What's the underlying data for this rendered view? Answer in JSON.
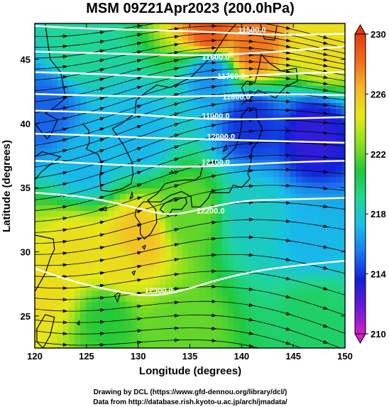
{
  "title": "MSM 09Z21Apr2023 (200.0hPa)",
  "credit": {
    "line1": "Drawing by DCL (https://www.gfd-dennou.org/library/dcl/)",
    "line2": "Data from http://database.rish.kyoto-u.ac.jp/arch/jmadata/"
  },
  "chart_data": {
    "type": "heatmap",
    "title": "MSM 09Z21Apr2023 (200.0hPa)",
    "xlabel": "Longitude (degrees)",
    "ylabel": "Latitude  (degrees)",
    "xlim": [
      120,
      150
    ],
    "ylim": [
      22.5,
      47.8
    ],
    "xticks": [
      120,
      125,
      130,
      135,
      140,
      145,
      150
    ],
    "yticks": [
      25,
      30,
      35,
      40,
      45
    ],
    "xtick_labels": [
      "120",
      "125",
      "130",
      "135",
      "140",
      "145",
      "150"
    ],
    "ytick_labels": [
      "25",
      "30",
      "35",
      "40",
      "45"
    ],
    "colorbar": {
      "min": 210,
      "max": 230,
      "ticks": [
        210,
        214,
        218,
        222,
        226,
        230
      ],
      "tick_labels": [
        "210",
        "214",
        "218",
        "222",
        "226",
        "230"
      ],
      "colors": [
        "#d020c8",
        "#6a18d8",
        "#1020d8",
        "#1a7aee",
        "#18c0e8",
        "#20d690",
        "#20c83a",
        "#8ee020",
        "#e6e818",
        "#f5b828",
        "#f06e1c",
        "#e43a10"
      ]
    },
    "temperature_samples": [
      {
        "lon": 121,
        "lat": 27,
        "value": 225
      },
      {
        "lon": 124,
        "lat": 30,
        "value": 225
      },
      {
        "lon": 130,
        "lat": 31,
        "value": 226
      },
      {
        "lon": 128,
        "lat": 29,
        "value": 225
      },
      {
        "lon": 135,
        "lat": 33,
        "value": 222
      },
      {
        "lon": 141,
        "lat": 33,
        "value": 218
      },
      {
        "lon": 147,
        "lat": 31,
        "value": 217
      },
      {
        "lon": 125,
        "lat": 37,
        "value": 217
      },
      {
        "lon": 121,
        "lat": 41,
        "value": 215
      },
      {
        "lon": 130,
        "lat": 39,
        "value": 217
      },
      {
        "lon": 141,
        "lat": 40,
        "value": 214
      },
      {
        "lon": 147,
        "lat": 39,
        "value": 213
      },
      {
        "lon": 124,
        "lat": 46,
        "value": 219
      },
      {
        "lon": 137,
        "lat": 44,
        "value": 216
      },
      {
        "lon": 141,
        "lat": 46,
        "value": 228
      },
      {
        "lon": 137,
        "lat": 47,
        "value": 229
      },
      {
        "lon": 148,
        "lat": 46,
        "value": 225
      },
      {
        "lon": 134,
        "lat": 24,
        "value": 222
      },
      {
        "lon": 127,
        "lat": 25,
        "value": 221
      },
      {
        "lon": 147,
        "lat": 25,
        "value": 220
      }
    ],
    "height_contours": [
      {
        "label": "11500.0",
        "value": 11500,
        "lat_at_lon": [
          [
            120,
            47.6
          ],
          [
            125,
            47.4
          ],
          [
            130,
            47.3
          ],
          [
            135,
            47.2
          ],
          [
            140,
            47.0
          ],
          [
            145,
            46.9
          ],
          [
            150,
            47.0
          ]
        ],
        "label_lon": 141,
        "label_lat": 47.3
      },
      {
        "label": "11600.0",
        "value": 11600,
        "lat_at_lon": [
          [
            120,
            45.6
          ],
          [
            125,
            45.5
          ],
          [
            130,
            45.4
          ],
          [
            135,
            45.3
          ],
          [
            140,
            45.4
          ],
          [
            145,
            45.7
          ],
          [
            150,
            46.0
          ]
        ],
        "label_lon": 137.5,
        "label_lat": 45.2
      },
      {
        "label": "11700.0",
        "value": 11700,
        "lat_at_lon": [
          [
            120,
            44.0
          ],
          [
            125,
            43.9
          ],
          [
            130,
            43.7
          ],
          [
            135,
            43.5
          ],
          [
            140,
            43.7
          ],
          [
            145,
            43.9
          ],
          [
            150,
            44.0
          ]
        ],
        "label_lon": 139,
        "label_lat": 43.7
      },
      {
        "label": "11800.0",
        "value": 11800,
        "lat_at_lon": [
          [
            120,
            42.3
          ],
          [
            125,
            42.2
          ],
          [
            130,
            42.1
          ],
          [
            135,
            42.1
          ],
          [
            140,
            42.2
          ],
          [
            145,
            42.3
          ],
          [
            150,
            42.2
          ]
        ],
        "label_lon": 139.5,
        "label_lat": 42.1
      },
      {
        "label": "11900.0",
        "value": 11900,
        "lat_at_lon": [
          [
            120,
            41.0
          ],
          [
            125,
            40.9
          ],
          [
            130,
            40.7
          ],
          [
            135,
            40.4
          ],
          [
            140,
            40.3
          ],
          [
            145,
            40.4
          ],
          [
            150,
            40.5
          ]
        ],
        "label_lon": 137.5,
        "label_lat": 40.6
      },
      {
        "label": "12000.0",
        "value": 12000,
        "lat_at_lon": [
          [
            120,
            39.2
          ],
          [
            125,
            39.1
          ],
          [
            130,
            38.9
          ],
          [
            135,
            38.8
          ],
          [
            140,
            38.7
          ],
          [
            145,
            38.6
          ],
          [
            150,
            38.5
          ]
        ],
        "label_lon": 138,
        "label_lat": 39.0
      },
      {
        "label": "12100.0",
        "value": 12100,
        "lat_at_lon": [
          [
            120,
            37.1
          ],
          [
            125,
            36.9
          ],
          [
            130,
            36.7
          ],
          [
            135,
            36.6
          ],
          [
            140,
            36.8
          ],
          [
            145,
            37.0
          ],
          [
            150,
            37.1
          ]
        ],
        "label_lon": 137.5,
        "label_lat": 37.0
      },
      {
        "label": "12200.0",
        "value": 12200,
        "lat_at_lon": [
          [
            120,
            34.6
          ],
          [
            125,
            34.3
          ],
          [
            130,
            33.4
          ],
          [
            133,
            32.8
          ],
          [
            136,
            33.3
          ],
          [
            140,
            34.0
          ],
          [
            145,
            34.1
          ],
          [
            150,
            34.2
          ]
        ],
        "label_lon": 137,
        "label_lat": 33.2
      },
      {
        "label": "12300.0",
        "value": 12300,
        "lat_at_lon": [
          [
            120,
            28.7
          ],
          [
            124,
            27.6
          ],
          [
            128,
            26.9
          ],
          [
            131,
            26.5
          ],
          [
            134,
            26.9
          ],
          [
            138,
            27.9
          ],
          [
            142,
            28.6
          ],
          [
            146,
            29.0
          ],
          [
            150,
            29.3
          ]
        ],
        "label_lon": 132,
        "label_lat": 27.0
      }
    ],
    "wind": {
      "description": "streamlines with arrowheads, predominantly eastward flow",
      "u_dir": "east"
    },
    "coastline_color": "#000000"
  }
}
